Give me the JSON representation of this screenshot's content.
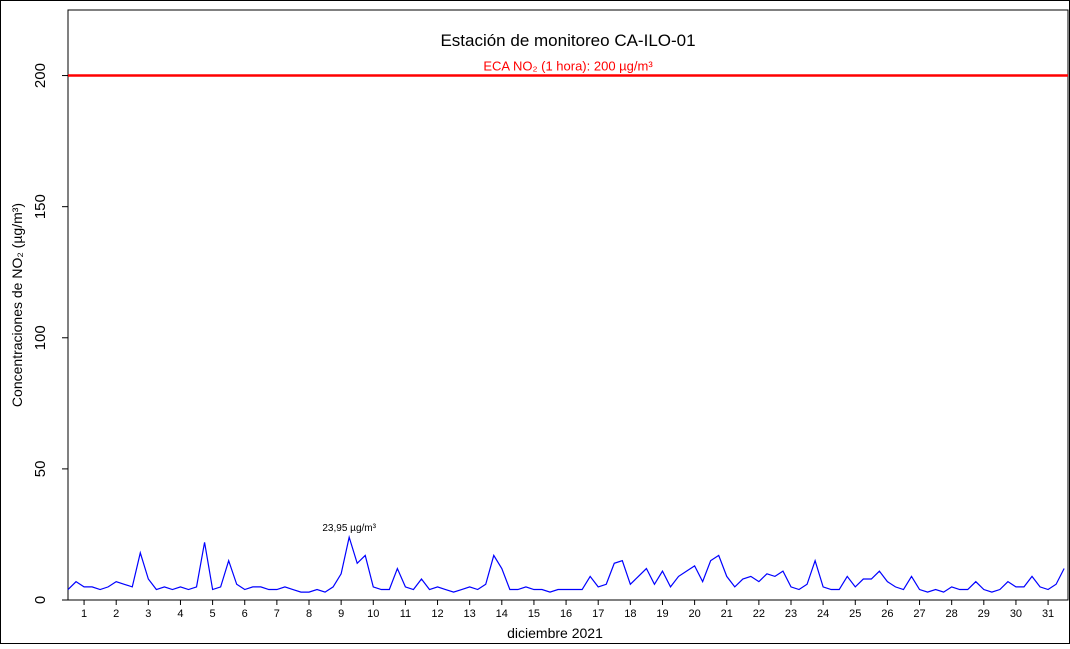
{
  "chart_data": {
    "type": "line",
    "title": "Estación de monitoreo  CA-ILO-01",
    "x_label": "diciembre 2021",
    "y_label": "Concentraciones de NO₂ (µg/m³)",
    "xlim": [
      0.5,
      31.62
    ],
    "ylim": [
      0,
      225
    ],
    "xticks": [
      1,
      2,
      3,
      4,
      5,
      6,
      7,
      8,
      9,
      10,
      11,
      12,
      13,
      14,
      15,
      16,
      17,
      18,
      19,
      20,
      21,
      22,
      23,
      24,
      25,
      26,
      27,
      28,
      29,
      30,
      31
    ],
    "yticks": [
      0,
      50,
      100,
      150,
      200
    ],
    "threshold": {
      "value": 200,
      "label": "ECA NO₂ (1 hora): 200 µg/m³",
      "color": "#ff0000"
    },
    "annotation": {
      "x": 9.25,
      "y": 23.95,
      "label": "23,95 µg/m³"
    },
    "x": [
      0.5,
      0.75,
      1,
      1.25,
      1.5,
      1.75,
      2,
      2.25,
      2.5,
      2.75,
      3,
      3.25,
      3.5,
      3.75,
      4,
      4.25,
      4.5,
      4.75,
      5,
      5.25,
      5.5,
      5.75,
      6,
      6.25,
      6.5,
      6.75,
      7,
      7.25,
      7.5,
      7.75,
      8,
      8.25,
      8.5,
      8.75,
      9,
      9.25,
      9.5,
      9.75,
      10,
      10.25,
      10.5,
      10.75,
      11,
      11.25,
      11.5,
      11.75,
      12,
      12.25,
      12.5,
      12.75,
      13,
      13.25,
      13.5,
      13.75,
      14,
      14.25,
      14.5,
      14.75,
      15,
      15.25,
      15.5,
      15.75,
      16,
      16.25,
      16.5,
      16.75,
      17,
      17.25,
      17.5,
      17.75,
      18,
      18.25,
      18.5,
      18.75,
      19,
      19.25,
      19.5,
      19.75,
      20,
      20.25,
      20.5,
      20.75,
      21,
      21.25,
      21.5,
      21.75,
      22,
      22.25,
      22.5,
      22.75,
      23,
      23.25,
      23.5,
      23.75,
      24,
      24.25,
      24.5,
      24.75,
      25,
      25.25,
      25.5,
      25.75,
      26,
      26.25,
      26.5,
      26.75,
      27,
      27.25,
      27.5,
      27.75,
      28,
      28.25,
      28.5,
      28.75,
      29,
      29.25,
      29.5,
      29.75,
      30,
      30.25,
      30.5,
      30.75,
      31,
      31.25,
      31.5
    ],
    "series": [
      {
        "color": "#0000ff",
        "values": [
          4,
          7,
          5,
          5,
          4,
          5,
          7,
          6,
          5,
          18,
          8,
          4,
          5,
          4,
          5,
          4,
          5,
          22,
          4,
          5,
          15,
          6,
          4,
          5,
          5,
          4,
          4,
          5,
          4,
          3,
          3,
          4,
          3,
          5,
          10,
          23.95,
          14,
          17,
          5,
          4,
          4,
          12,
          5,
          4,
          8,
          4,
          5,
          4,
          3,
          4,
          5,
          4,
          6,
          17,
          12,
          4,
          4,
          5,
          4,
          4,
          3,
          4,
          4,
          4,
          4,
          9,
          5,
          6,
          14,
          15,
          6,
          9,
          12,
          6,
          11,
          5,
          9,
          11,
          13,
          7,
          15,
          17,
          9,
          5,
          8,
          9,
          7,
          10,
          9,
          11,
          5,
          4,
          6,
          15,
          5,
          4,
          4,
          9,
          5,
          8,
          8,
          11,
          7,
          5,
          4,
          9,
          4,
          3,
          4,
          3,
          5,
          4,
          4,
          7,
          4,
          3,
          4,
          7,
          5,
          5,
          9,
          5,
          4,
          6,
          12
        ]
      }
    ]
  }
}
